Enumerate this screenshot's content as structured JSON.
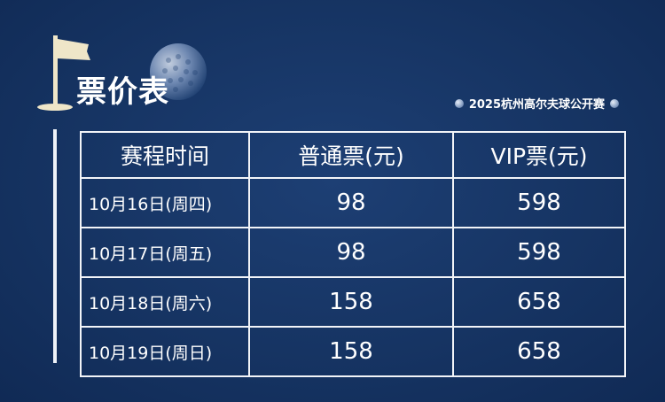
{
  "header": {
    "title": "票价表",
    "event_name": "2025杭州高尔夫球公开赛"
  },
  "table": {
    "columns": [
      "赛程时间",
      "普通票(元)",
      "VIP票(元)"
    ],
    "rows": [
      {
        "date": "10月16日(周四)",
        "regular": "98",
        "vip": "598"
      },
      {
        "date": "10月17日(周五)",
        "regular": "98",
        "vip": "598"
      },
      {
        "date": "10月18日(周六)",
        "regular": "158",
        "vip": "658"
      },
      {
        "date": "10月19日(周日)",
        "regular": "158",
        "vip": "658"
      }
    ]
  },
  "icons": {
    "flag": "golf-flag-icon",
    "ball": "golf-ball-icon"
  },
  "colors": {
    "background": "#163463",
    "accent": "#efe6c8",
    "line": "#f2f4f8"
  }
}
